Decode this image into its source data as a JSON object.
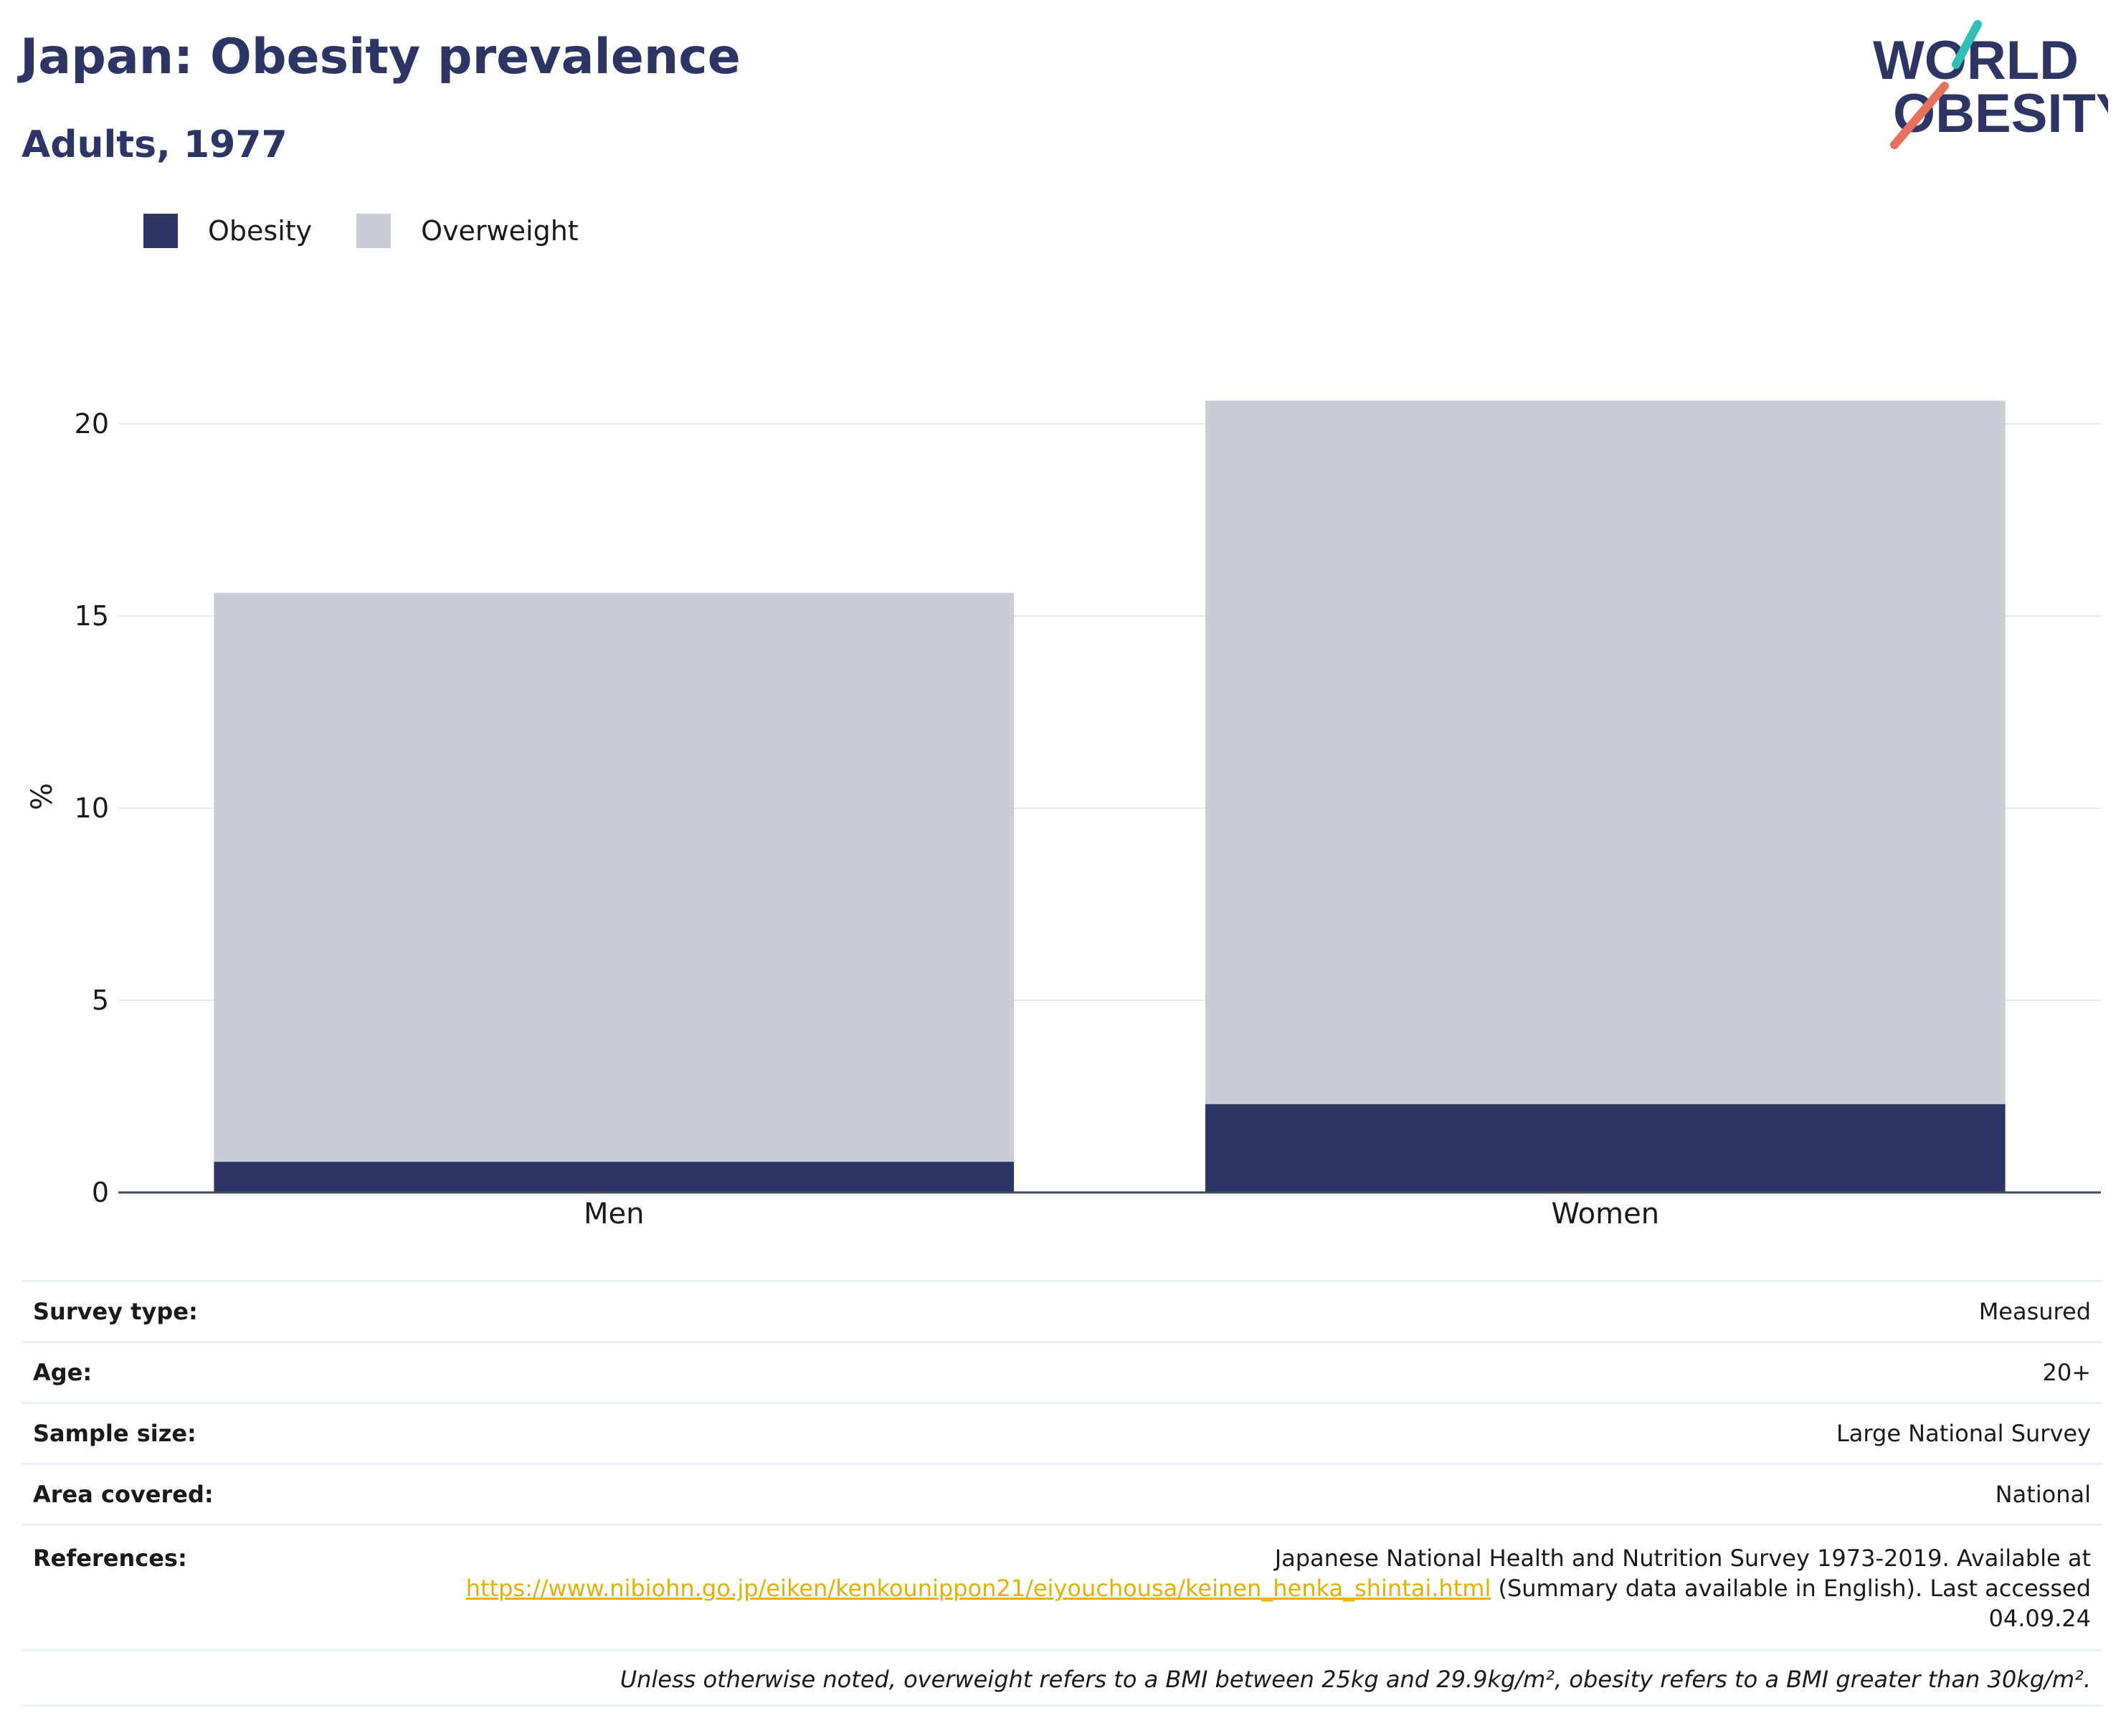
{
  "header": {
    "title": "Japan: Obesity prevalence",
    "subtitle": "Adults, 1977",
    "logo_text_line1": "WORLD",
    "logo_text_line2": "OBESITY"
  },
  "legend": {
    "obesity_label": "Obesity",
    "overweight_label": "Overweight"
  },
  "colors": {
    "obesity": "#2c3563",
    "overweight": "#c9ccd7",
    "logo_teal": "#2fbfb5",
    "logo_coral": "#e8705e",
    "link": "#e5b100"
  },
  "chart_data": {
    "type": "bar",
    "stacked": true,
    "categories": [
      "Men",
      "Women"
    ],
    "series": [
      {
        "name": "Obesity",
        "values": [
          0.8,
          2.3
        ]
      },
      {
        "name": "Overweight",
        "values": [
          14.8,
          18.3
        ]
      }
    ],
    "title": "Japan: Obesity prevalence",
    "subtitle": "Adults, 1977",
    "xlabel": "",
    "ylabel": "%",
    "ylim": [
      0,
      20.6
    ],
    "yticks": [
      0,
      5,
      10,
      15,
      20
    ],
    "grid": true,
    "legend_position": "top-left"
  },
  "details": {
    "survey_type": {
      "label": "Survey type:",
      "value": "Measured"
    },
    "age": {
      "label": "Age:",
      "value": "20+"
    },
    "sample_size": {
      "label": "Sample size:",
      "value": "Large National Survey"
    },
    "area_covered": {
      "label": "Area covered:",
      "value": "National"
    },
    "references": {
      "label": "References:",
      "text_before": "Japanese National Health and Nutrition Survey 1973-2019. Available at",
      "link": "https://www.nibiohn.go.jp/eiken/kenkounippon21/eiyouchousa/keinen_henka_shintai.html",
      "text_after": "(Summary data available in English). Last accessed 04.09.24"
    },
    "footnote": "Unless otherwise noted, overweight refers to a BMI between 25kg and 29.9kg/m², obesity refers to a BMI greater than 30kg/m²."
  }
}
